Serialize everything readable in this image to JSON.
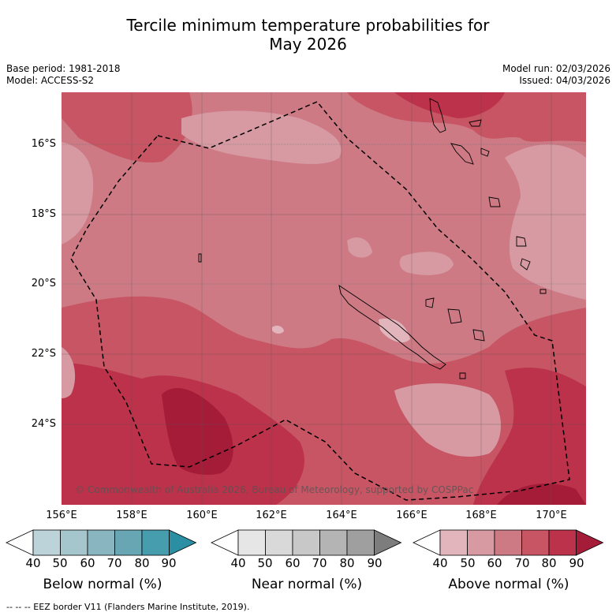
{
  "header": {
    "title_line1": "Tercile minimum temperature probabilities for",
    "title_line2": "May 2026",
    "base_period": "Base period: 1981-2018",
    "model": "Model: ACCESS-S2",
    "model_run": "Model run: 02/03/2026",
    "issued": "Issued: 04/03/2026"
  },
  "map": {
    "lat_labels": [
      "16°S",
      "18°S",
      "20°S",
      "22°S",
      "24°S"
    ],
    "lon_labels": [
      "156°E",
      "158°E",
      "160°E",
      "162°E",
      "164°E",
      "166°E",
      "168°E",
      "170°E"
    ],
    "copyright": "© Commonwealth of Australia 2026, Bureau of Meteorology, supported by COSPPac"
  },
  "colorbars": [
    {
      "title": "Below normal (%)",
      "ticks": [
        "40",
        "50",
        "60",
        "70",
        "80",
        "90"
      ],
      "colors": [
        "#ffffff",
        "#bdd3da",
        "#a5c6cd",
        "#88b5bf",
        "#68a6b3",
        "#469dae",
        "#2a8fa3"
      ]
    },
    {
      "title": "Near normal (%)",
      "ticks": [
        "40",
        "50",
        "60",
        "70",
        "80",
        "90"
      ],
      "colors": [
        "#ffffff",
        "#e6e6e6",
        "#d9d9d9",
        "#c8c8c8",
        "#b4b4b4",
        "#9f9f9f",
        "#7d7d7d"
      ]
    },
    {
      "title": "Above normal (%)",
      "ticks": [
        "40",
        "50",
        "60",
        "70",
        "80",
        "90"
      ],
      "colors": [
        "#ffffff",
        "#e2b5bd",
        "#d79aa3",
        "#cd7a85",
        "#c75563",
        "#bb324a",
        "#a51c39"
      ]
    }
  ],
  "footer": {
    "eez_legend": "--  --  -- EEZ border V11 (Flanders Marine Institute, 2019)."
  }
}
